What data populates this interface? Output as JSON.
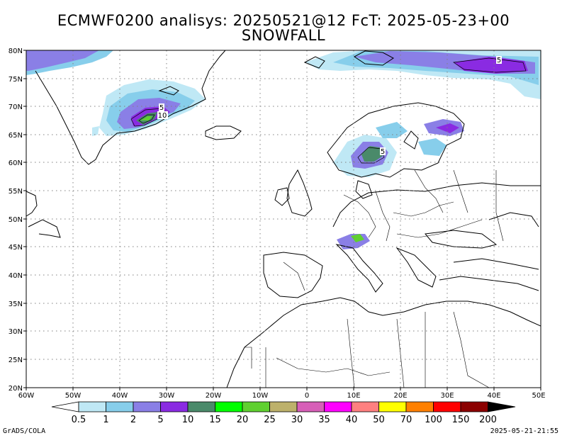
{
  "title_line1": "ECMWF0200 analisys: 20250521@12 FcT: 2025-05-23+00",
  "title_line2": "SNOWFALL",
  "lat_labels": [
    "80N",
    "75N",
    "70N",
    "65N",
    "60N",
    "55N",
    "50N",
    "45N",
    "40N",
    "35N",
    "30N",
    "25N",
    "20N"
  ],
  "lon_labels": [
    "60W",
    "50W",
    "40W",
    "30W",
    "20W",
    "10W",
    "0",
    "10E",
    "20E",
    "30E",
    "40E",
    "50E"
  ],
  "colorbar": {
    "labels": [
      "0.5",
      "1",
      "2",
      "5",
      "10",
      "15",
      "20",
      "25",
      "30",
      "35",
      "40",
      "50",
      "70",
      "100",
      "150",
      "200"
    ],
    "colors": [
      "#ffffff",
      "#bfe8f5",
      "#87ceeb",
      "#8a7fe6",
      "#8a2be2",
      "#4a8a6a",
      "#00ff00",
      "#5fd030",
      "#bdb16b",
      "#d75fb8",
      "#ff00ff",
      "#ff8080",
      "#ffff00",
      "#ff8000",
      "#ff0000",
      "#8b0000",
      "#000000"
    ]
  },
  "contour_labels": [
    "5",
    "10",
    "5",
    "5"
  ],
  "footer_left": "GrADS/COLA",
  "footer_right": "2025-05-21-21:55"
}
